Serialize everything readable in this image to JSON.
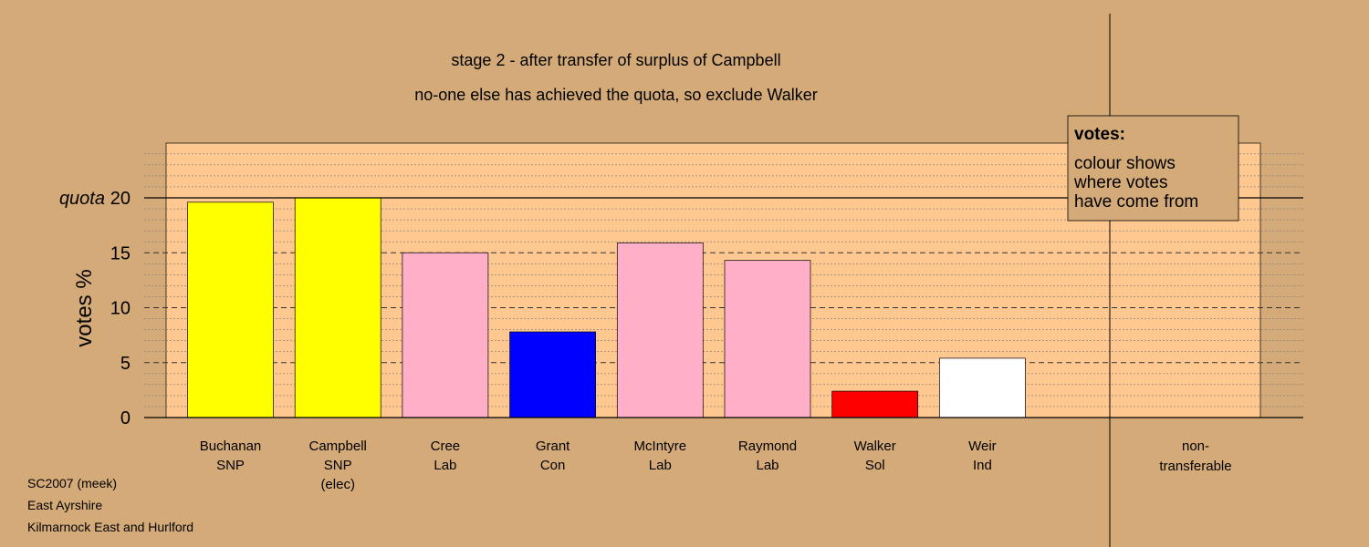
{
  "background": "#D4AA78",
  "plot_bg": "#FFC890",
  "chart_data": {
    "type": "bar",
    "title": "stage 2 - after transfer of surplus of Campbell",
    "subtitle": "no-one else has achieved the quota, so exclude Walker",
    "ylabel": "votes %",
    "quota_label": "quota",
    "quota": 20,
    "ylim": [
      0,
      20
    ],
    "yticks": [
      0,
      5,
      10,
      15,
      20
    ],
    "minor_gridlines": true,
    "categories": [
      {
        "name": "Buchanan",
        "party": "SNP",
        "note": ""
      },
      {
        "name": "Campbell",
        "party": "SNP",
        "note": "(elec)"
      },
      {
        "name": "Cree",
        "party": "Lab",
        "note": ""
      },
      {
        "name": "Grant",
        "party": "Con",
        "note": ""
      },
      {
        "name": "McIntyre",
        "party": "Lab",
        "note": ""
      },
      {
        "name": "Raymond",
        "party": "Lab",
        "note": ""
      },
      {
        "name": "Walker",
        "party": "Sol",
        "note": ""
      },
      {
        "name": "Weir",
        "party": "Ind",
        "note": ""
      }
    ],
    "values": [
      19.6,
      20.0,
      15.0,
      7.8,
      15.9,
      14.3,
      2.4,
      5.4
    ],
    "colors": [
      "#FFFF00",
      "#FFFF00",
      "#FFB0C8",
      "#0000FF",
      "#FFB0C8",
      "#FFB0C8",
      "#FF0000",
      "#FFFFFF"
    ],
    "non_transferable": {
      "line1": "non-",
      "line2": "transferable",
      "value": 0
    },
    "legend": {
      "title": "votes:",
      "lines": [
        "colour shows",
        "where votes",
        "have come from"
      ],
      "position": "top-right"
    }
  },
  "footer": {
    "line1": "SC2007 (meek)",
    "line2": "East Ayrshire",
    "line3": "Kilmarnock East and Hurlford"
  }
}
